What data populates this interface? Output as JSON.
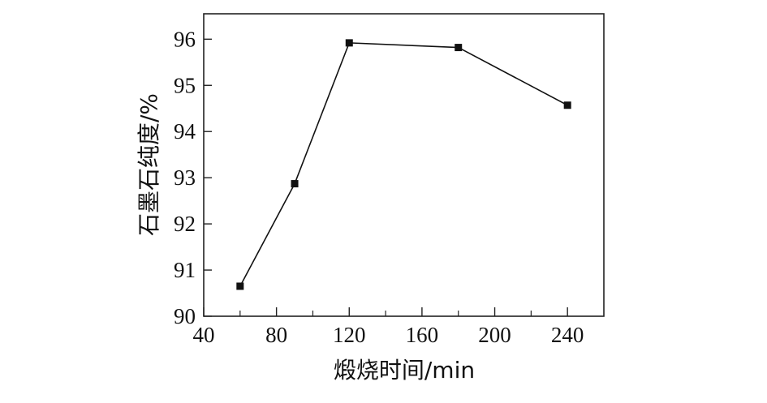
{
  "chart_data": {
    "type": "line",
    "xlabel": "煅烧时间/min",
    "ylabel": "石墨石纯度/%",
    "xlim": [
      40,
      260
    ],
    "ylim": [
      90,
      96.55
    ],
    "x_ticks": [
      40,
      80,
      120,
      160,
      200,
      240
    ],
    "x_minor_ticks": [
      60,
      100,
      140,
      180,
      220
    ],
    "y_ticks": [
      90,
      91,
      92,
      93,
      94,
      95,
      96
    ],
    "grid": false,
    "series": [
      {
        "marker": "square",
        "color": "#111111",
        "x": [
          60,
          90,
          120,
          180,
          240
        ],
        "y": [
          90.65,
          92.87,
          95.92,
          95.82,
          94.57
        ]
      }
    ]
  }
}
